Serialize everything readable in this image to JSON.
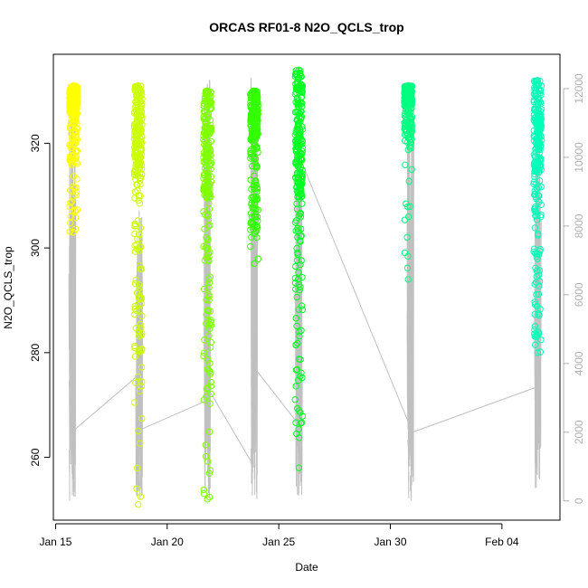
{
  "chart_data": {
    "type": "scatter",
    "title": "ORCAS RF01-8 N2O_QCLS_trop",
    "xlabel": "Date",
    "ylabel": "N2O_QCLS_trop",
    "x_ticks": [
      "Jan 15",
      "Jan 20",
      "Jan 25",
      "Jan 30",
      "Feb 04"
    ],
    "x_tick_days": [
      0,
      5,
      10,
      15,
      20
    ],
    "xlim": [
      -0.1,
      22.6
    ],
    "ylim": [
      248,
      337
    ],
    "y_ticks": [
      260,
      280,
      300,
      320
    ],
    "y2_ticks": [
      0,
      2000,
      4000,
      6000,
      8000,
      10000,
      12000
    ],
    "y2lim": [
      -560,
      13000
    ],
    "grid": false,
    "legend": "none",
    "colors": {
      "flight_track": "#c0c0c0",
      "flights": [
        "#ffff00",
        "#ccff00",
        "#80ff00",
        "#33ff00",
        "#00ff22",
        "#00ff80",
        "#00ffb8"
      ]
    },
    "flights": [
      {
        "day": 0.8,
        "n2o_min": 303,
        "n2o_max": 331,
        "dense_min": 316,
        "color": "#ffff00"
      },
      {
        "day": 3.7,
        "n2o_min": 251,
        "n2o_max": 331,
        "dense_min": 280,
        "color": "#ccff00"
      },
      {
        "day": 6.8,
        "n2o_min": 252,
        "n2o_max": 330,
        "dense_min": 272,
        "color": "#80ff00"
      },
      {
        "day": 8.9,
        "n2o_min": 297,
        "n2o_max": 330,
        "dense_min": 303,
        "color": "#33ff00"
      },
      {
        "day": 10.9,
        "n2o_min": 258,
        "n2o_max": 334,
        "dense_min": 264,
        "color": "#00ff22"
      },
      {
        "day": 15.8,
        "n2o_min": 294,
        "n2o_max": 331,
        "dense_min": 320,
        "color": "#00ff80"
      },
      {
        "day": 21.6,
        "n2o_min": 280,
        "n2o_max": 332,
        "dense_min": 282,
        "color": "#00ffb8"
      }
    ],
    "altitude_track": [
      {
        "day": 0.75,
        "low": 0,
        "high": 12000
      },
      {
        "day": 3.75,
        "low": 0,
        "high": 8500
      },
      {
        "day": 6.8,
        "low": 0,
        "high": 12300
      },
      {
        "day": 8.9,
        "low": 0,
        "high": 12500
      },
      {
        "day": 10.9,
        "low": 0,
        "high": 11000
      },
      {
        "day": 15.9,
        "low": 0,
        "high": 12200
      },
      {
        "day": 21.6,
        "low": 0,
        "high": 12000
      }
    ],
    "altitude_links": [
      [
        0.9,
        2100,
        3.6,
        3600
      ],
      [
        3.9,
        2100,
        6.7,
        2900
      ],
      [
        6.9,
        3200,
        8.8,
        1100
      ],
      [
        9.0,
        3800,
        10.8,
        2300
      ],
      [
        11.0,
        9900,
        15.8,
        2300
      ],
      [
        16.0,
        2000,
        21.5,
        3300
      ]
    ]
  }
}
